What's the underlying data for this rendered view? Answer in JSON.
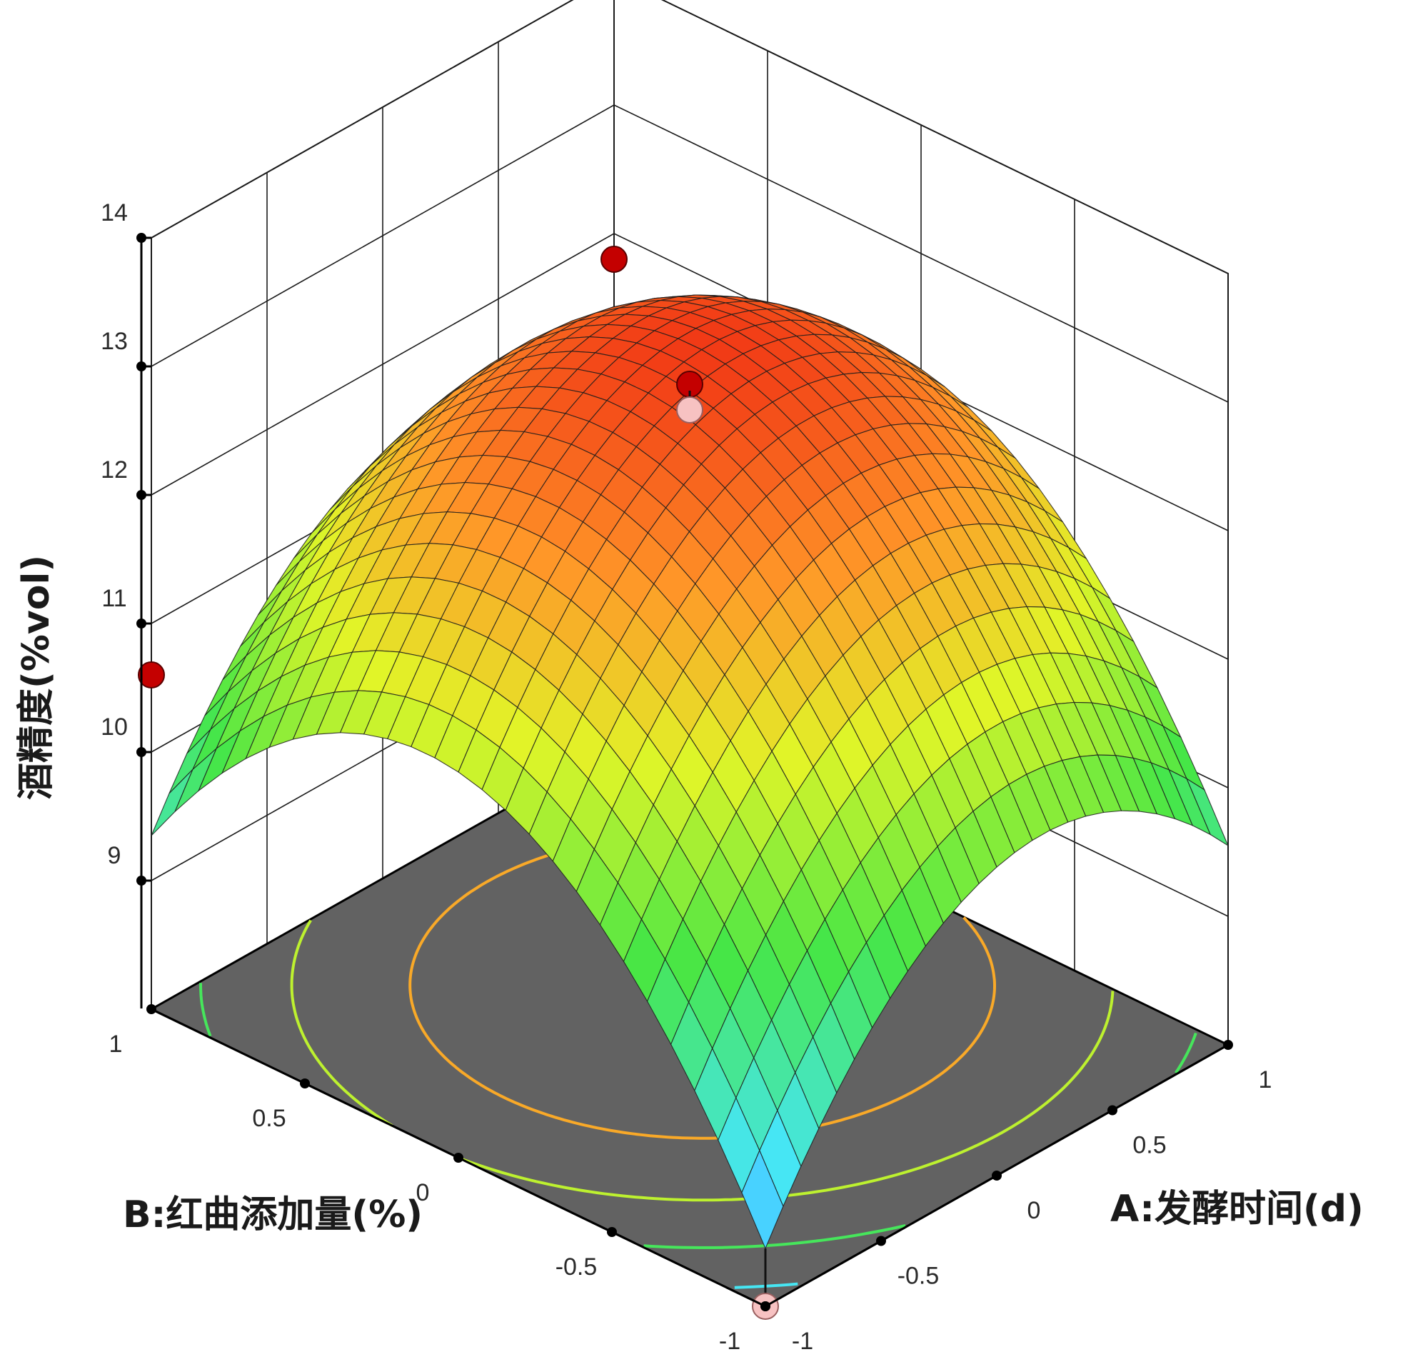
{
  "chart_data": {
    "type": "surface",
    "xlabel": "A:发酵时间(d)",
    "ylabel": "B:红曲添加量(%)",
    "zlabel": "酒精度(%vol)",
    "x_ticks": [
      "-1",
      "-0.5",
      "0",
      "0.5",
      "1"
    ],
    "y_ticks": [
      "-1",
      "-0.5",
      "0",
      "0.5",
      "1"
    ],
    "z_ticks": [
      "9",
      "10",
      "11",
      "12",
      "13",
      "14"
    ],
    "xlim": [
      -1,
      1
    ],
    "ylim": [
      -1,
      1
    ],
    "zlim": [
      8,
      14
    ],
    "grid": true,
    "model": {
      "intercept": 12.95,
      "A": 0.55,
      "B": 0.45,
      "AB": 0.0,
      "A2": -1.4,
      "B2": -2.1
    },
    "design_points": [
      {
        "A": 0,
        "B": 0,
        "z": 13.0
      },
      {
        "A": 0,
        "B": 0,
        "z": 12.8
      },
      {
        "A": 1,
        "B": 1,
        "z": 11.8
      },
      {
        "A": -1,
        "B": 1,
        "z": 10.6
      },
      {
        "A": -1,
        "B": -1,
        "z": 8.0
      }
    ],
    "contour_levels": [
      9,
      10,
      11,
      12
    ],
    "colors": {
      "floor": "#626262",
      "point_above": "#c40000",
      "point_below": "#f7c2c2",
      "grid_line": "#1a1a1a",
      "mesh_line": "#1c1c1c"
    }
  }
}
